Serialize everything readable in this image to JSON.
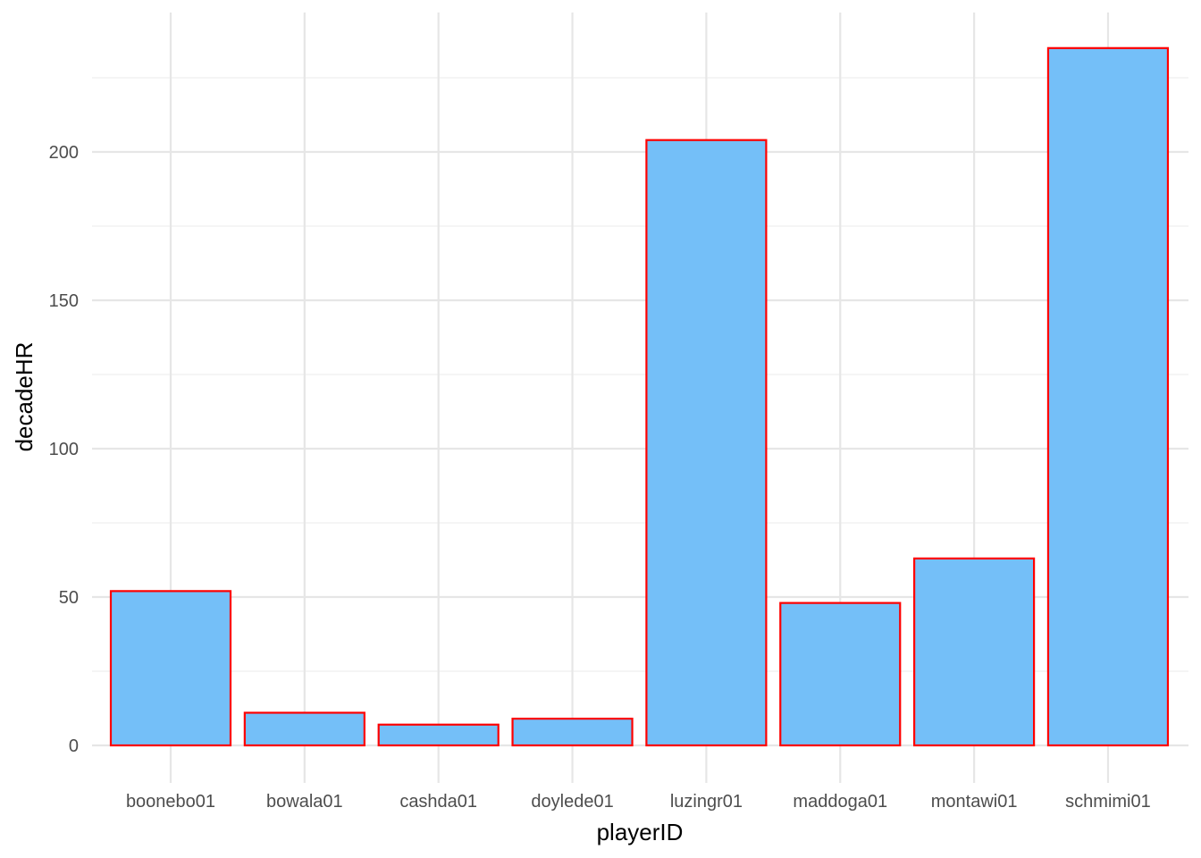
{
  "chart_data": {
    "type": "bar",
    "categories": [
      "boonebo01",
      "bowala01",
      "cashda01",
      "doylede01",
      "luzingr01",
      "maddoga01",
      "montawi01",
      "schmimi01"
    ],
    "values": [
      52,
      11,
      7,
      9,
      204,
      48,
      63,
      235
    ],
    "title": "",
    "xlabel": "playerID",
    "ylabel": "decadeHR",
    "ylim": [
      0,
      240
    ],
    "y_ticks": [
      0,
      50,
      100,
      150,
      200
    ],
    "grid": true,
    "legend": "none",
    "colors": {
      "bar_fill": "#74BFF8",
      "bar_outline": "#FF0000",
      "grid": "#E6E6E6",
      "tick_text": "#4D4D4D"
    }
  }
}
